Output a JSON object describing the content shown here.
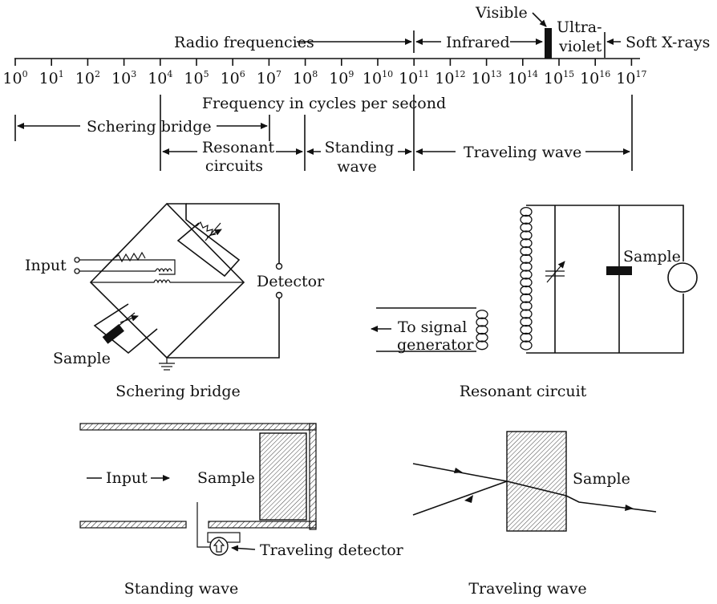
{
  "spectrum": {
    "regions": {
      "radio": "Radio frequencies",
      "infrared": "Infrared",
      "visible": "Visible",
      "ultraviolet_line1": "Ultra-",
      "ultraviolet_line2": "violet",
      "xrays": "Soft X-rays"
    },
    "axis_label": "Frequency in cycles per second",
    "tick_base": "10",
    "tick_exponents": [
      "0",
      "1",
      "2",
      "3",
      "4",
      "5",
      "6",
      "7",
      "8",
      "9",
      "10",
      "11",
      "12",
      "13",
      "14",
      "15",
      "16",
      "17"
    ]
  },
  "methods": {
    "schering": "Schering bridge",
    "resonant_line1": "Resonant",
    "resonant_line2": "circuits",
    "standing_line1": "Standing",
    "standing_line2": "wave",
    "traveling": "Traveling wave"
  },
  "schering_diagram": {
    "input": "Input",
    "detector": "Detector",
    "sample": "Sample",
    "caption": "Schering bridge"
  },
  "resonant_diagram": {
    "sample": "Sample",
    "signal_line1": "To signal",
    "signal_line2": "generator",
    "caption": "Resonant circuit"
  },
  "standing_diagram": {
    "input": "Input",
    "sample": "Sample",
    "detector": "Traveling detector",
    "caption": "Standing wave"
  },
  "traveling_diagram": {
    "sample": "Sample",
    "caption": "Traveling wave"
  }
}
